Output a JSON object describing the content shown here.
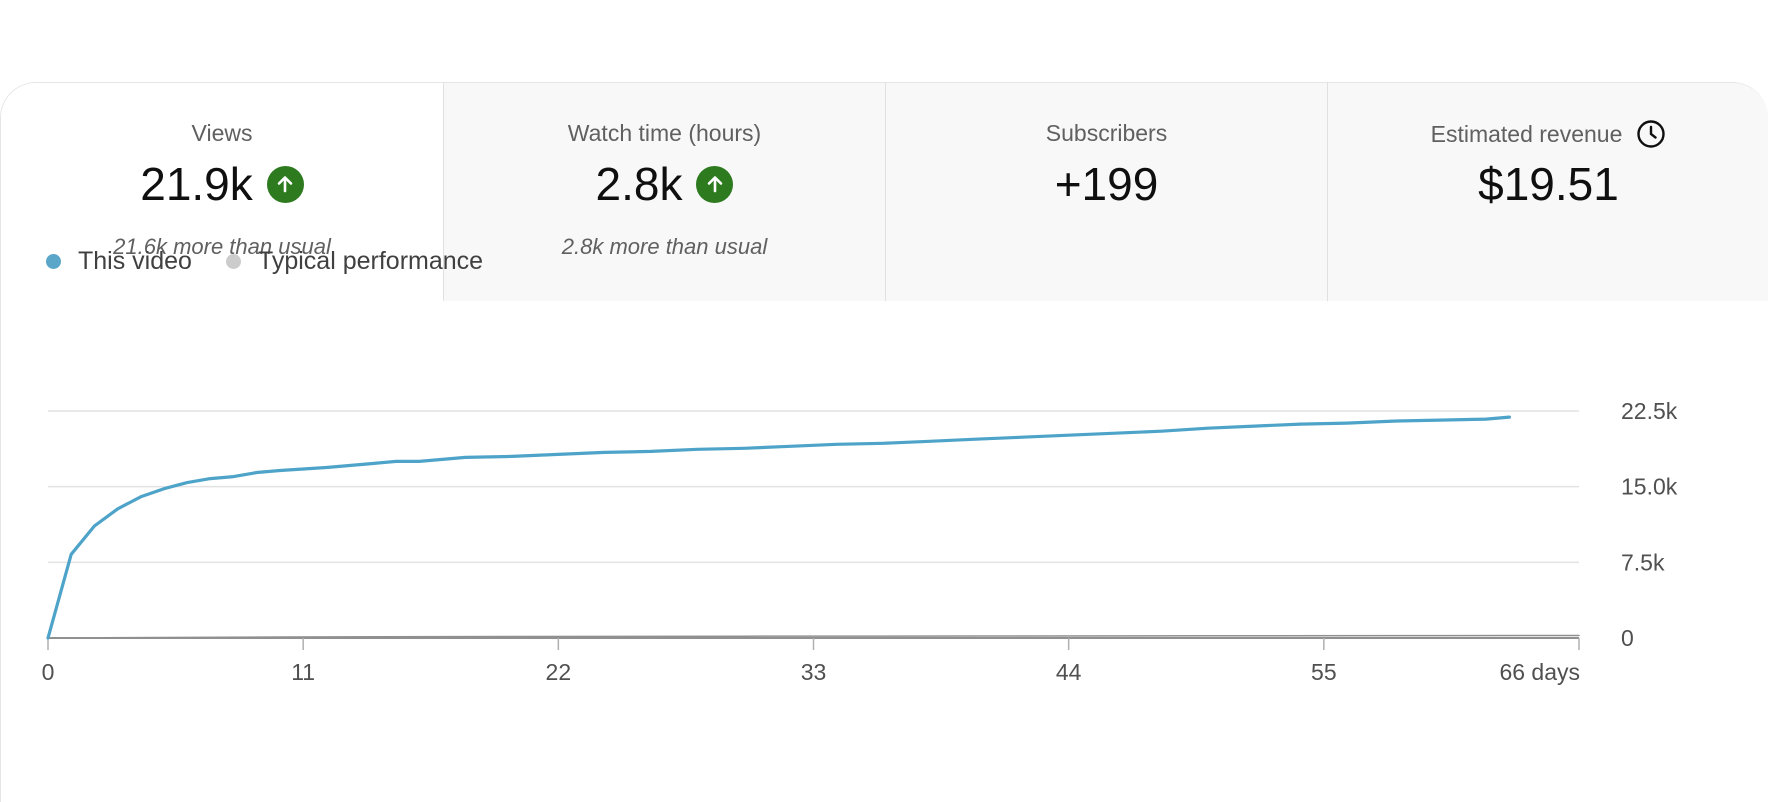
{
  "metrics": [
    {
      "title": "Views",
      "value": "21.9k",
      "note": "21.6k more than usual",
      "trend": "up",
      "active": true
    },
    {
      "title": "Watch time (hours)",
      "value": "2.8k",
      "note": "2.8k more than usual",
      "trend": "up",
      "active": false
    },
    {
      "title": "Subscribers",
      "value": "+199",
      "note": "",
      "trend": "",
      "active": false
    },
    {
      "title": "Estimated revenue",
      "value": "$19.51",
      "note": "",
      "trend": "",
      "active": false,
      "icon": "clock-icon"
    }
  ],
  "legend": [
    {
      "label": "This video",
      "color": "#5aa6c8"
    },
    {
      "label": "Typical performance",
      "color": "#cccccc"
    }
  ],
  "colors": {
    "accent_line": "#4ea3c9",
    "trend_up": "#2d7a1f",
    "typical_line": "#909090"
  },
  "chart_data": {
    "type": "line",
    "x_ticks": [
      "0",
      "11",
      "22",
      "33",
      "44",
      "55",
      "66 days"
    ],
    "x_tick_values": [
      0,
      11,
      22,
      33,
      44,
      55,
      66
    ],
    "y_ticks": [
      "0",
      "7.5k",
      "15.0k",
      "22.5k"
    ],
    "y_tick_values": [
      0,
      7500,
      15000,
      22500
    ],
    "xlim": [
      0,
      66
    ],
    "ylim": [
      0,
      22500
    ],
    "grid": true,
    "legend_position": "top-left",
    "series": [
      {
        "name": "This video",
        "x": [
          0,
          1,
          2,
          3,
          4,
          5,
          6,
          7,
          8,
          9,
          10,
          12,
          14,
          15,
          16,
          18,
          20,
          22,
          24,
          26,
          28,
          30,
          32,
          34,
          36,
          38,
          40,
          42,
          44,
          46,
          48,
          50,
          52,
          54,
          56,
          58,
          60,
          62,
          63
        ],
        "values": [
          0,
          8300,
          11100,
          12800,
          14000,
          14800,
          15400,
          15800,
          16000,
          16400,
          16600,
          16900,
          17300,
          17500,
          17500,
          17900,
          18000,
          18200,
          18400,
          18500,
          18700,
          18800,
          19000,
          19200,
          19300,
          19500,
          19700,
          19900,
          20100,
          20300,
          20500,
          20800,
          21000,
          21200,
          21300,
          21500,
          21600,
          21700,
          21900
        ]
      },
      {
        "name": "Typical performance",
        "x": [
          0,
          10,
          20,
          30,
          40,
          50,
          60,
          66
        ],
        "values": [
          0,
          100,
          150,
          180,
          200,
          220,
          240,
          250
        ]
      }
    ]
  }
}
